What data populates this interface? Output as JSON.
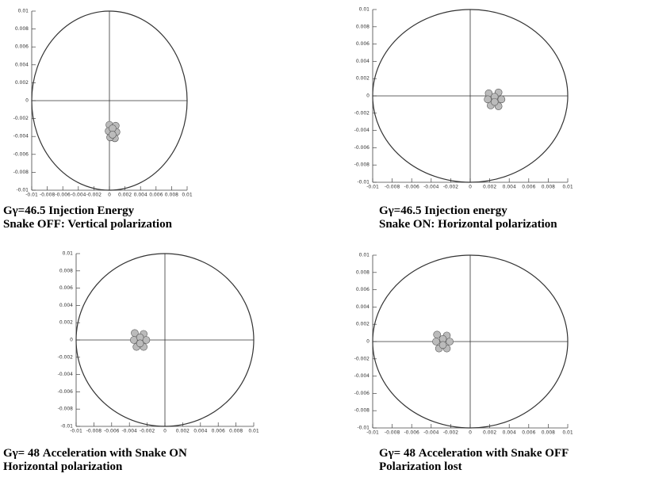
{
  "chart_data": [
    {
      "type": "scatter",
      "caption": [
        "Gγ=46.5 Injection Energy",
        "Snake OFF: Vertical polarization"
      ],
      "x": [
        0.0,
        0.0008,
        0.0009,
        0.0007,
        0.0001,
        -0.0001,
        0.0004,
        0.0004
      ],
      "values": [
        -0.0027,
        -0.0028,
        -0.0035,
        -0.0042,
        -0.0041,
        -0.0034,
        -0.0031,
        -0.0038
      ],
      "color": "#bbbbbb",
      "xlim": [
        -0.01,
        0.01
      ],
      "ylim": [
        -0.01,
        0.01
      ],
      "xticks": [
        -0.01,
        -0.008,
        -0.006,
        -0.004,
        -0.002,
        0,
        0.002,
        0.004,
        0.006,
        0.008,
        0.01
      ],
      "yticks": [
        -0.01,
        -0.008,
        -0.006,
        -0.004,
        -0.002,
        0,
        0.002,
        0.004,
        0.006,
        0.008,
        0.01
      ]
    },
    {
      "type": "scatter",
      "caption": [
        "Gγ=46.5 Injection energy",
        "Snake ON: Horizontal polarization"
      ],
      "x": [
        0.0019,
        0.0029,
        0.0032,
        0.0029,
        0.0021,
        0.0018,
        0.0025,
        0.0025
      ],
      "values": [
        0.0003,
        0.0004,
        -0.0004,
        -0.0012,
        -0.0011,
        -0.0004,
        -0.0001,
        -0.0007
      ],
      "color": "#bbbbbb",
      "xlim": [
        -0.01,
        0.01
      ],
      "ylim": [
        -0.01,
        0.01
      ],
      "xticks": [
        -0.01,
        -0.008,
        -0.006,
        -0.004,
        -0.002,
        0,
        0.002,
        0.004,
        0.006,
        0.008,
        0.01
      ],
      "yticks": [
        -0.01,
        -0.008,
        -0.006,
        -0.004,
        -0.002,
        0,
        0.002,
        0.004,
        0.006,
        0.008,
        0.01
      ]
    },
    {
      "type": "scatter",
      "caption": [
        "Gγ= 48 Acceleration with Snake ON",
        "Horizontal polarization"
      ],
      "x": [
        -0.0034,
        -0.0024,
        -0.0021,
        -0.0024,
        -0.0032,
        -0.0035,
        -0.0028,
        -0.0028
      ],
      "values": [
        0.0008,
        0.0007,
        0.0,
        -0.0008,
        -0.0008,
        0.0,
        0.0003,
        -0.0004
      ],
      "color": "#bbbbbb",
      "xlim": [
        -0.01,
        0.01
      ],
      "ylim": [
        -0.01,
        0.01
      ],
      "xticks": [
        -0.01,
        -0.008,
        -0.006,
        -0.004,
        -0.002,
        0,
        0.002,
        0.004,
        0.006,
        0.008,
        0.01
      ],
      "yticks": [
        -0.01,
        -0.008,
        -0.006,
        -0.004,
        -0.002,
        0,
        0.002,
        0.004,
        0.006,
        0.008,
        0.01
      ]
    },
    {
      "type": "scatter",
      "caption": [
        "Gγ= 48 Acceleration with Snake OFF",
        "Polarization lost"
      ],
      "x": [
        -0.0034,
        -0.0024,
        -0.0021,
        -0.0024,
        -0.0032,
        -0.0035,
        -0.0028,
        -0.0028
      ],
      "values": [
        0.0008,
        0.0007,
        0.0,
        -0.0008,
        -0.0008,
        0.0,
        0.0003,
        -0.0004
      ],
      "color": "#bbbbbb",
      "xlim": [
        -0.01,
        0.01
      ],
      "ylim": [
        -0.01,
        0.01
      ],
      "xticks": [
        -0.01,
        -0.008,
        -0.006,
        -0.004,
        -0.002,
        0,
        0.002,
        0.004,
        0.006,
        0.008,
        0.01
      ],
      "yticks": [
        -0.01,
        -0.008,
        -0.006,
        -0.004,
        -0.002,
        0,
        0.002,
        0.004,
        0.006,
        0.008,
        0.01
      ]
    }
  ]
}
